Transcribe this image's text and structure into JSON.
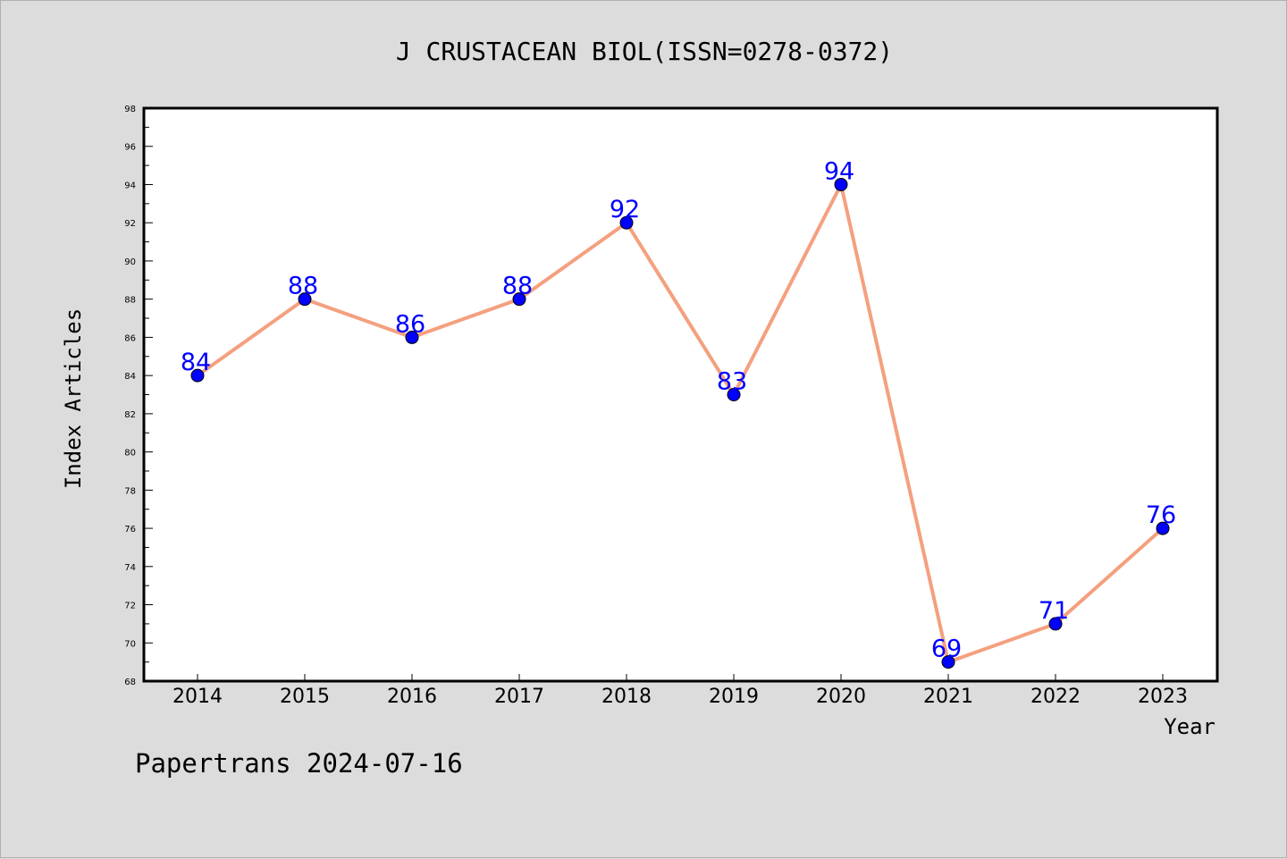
{
  "chart_data": {
    "type": "line",
    "title": "J CRUSTACEAN BIOL(ISSN=0278-0372)",
    "xlabel": "Year",
    "ylabel": "Index Articles",
    "footer": "Papertrans 2024-07-16",
    "x": [
      "2014",
      "2015",
      "2016",
      "2017",
      "2018",
      "2019",
      "2020",
      "2021",
      "2022",
      "2023"
    ],
    "series": [
      {
        "values": [
          84,
          88,
          86,
          88,
          92,
          83,
          94,
          69,
          71,
          76
        ]
      }
    ],
    "data_labels": [
      "84",
      "88",
      "86",
      "88",
      "92",
      "83",
      "94",
      "69",
      "71",
      "76"
    ],
    "ylim": [
      68,
      98
    ],
    "y_ticks": [
      "68",
      "70",
      "72",
      "74",
      "76",
      "78",
      "80",
      "82",
      "84",
      "86",
      "88",
      "90",
      "92",
      "94",
      "96",
      "98"
    ],
    "grid": false,
    "colors": {
      "line": "#f4a07f",
      "marker": "#0000ff",
      "label": "#0000ff",
      "background": "#dcdcdc",
      "plot_bg": "#ffffff"
    }
  }
}
